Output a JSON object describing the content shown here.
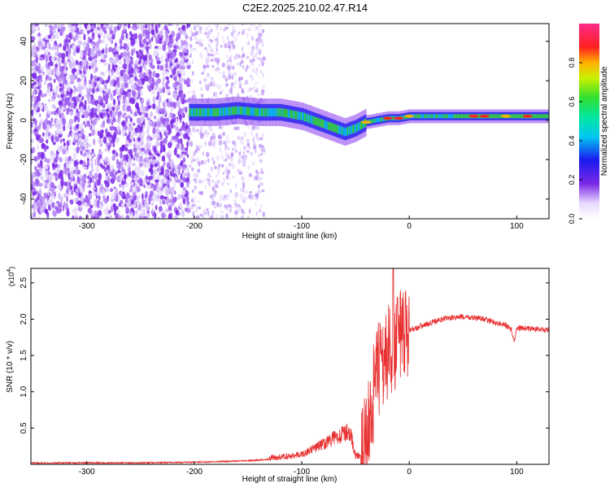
{
  "title": "C2E2.2025.210.02.47.R14",
  "chart_data": [
    {
      "type": "heatmap",
      "xlabel": "Height of straight line (km)",
      "ylabel": "Frequency (Hz)",
      "xlim": [
        -352,
        130
      ],
      "ylim": [
        -50,
        49
      ],
      "xticks": [
        -300,
        -200,
        -100,
        0,
        100
      ],
      "yticks": [
        -40,
        -20,
        0,
        20,
        40
      ],
      "grid": false,
      "colorbar": {
        "label": "Normalized spectral amplitude",
        "range": [
          0,
          1
        ],
        "ticks": [
          "0.0",
          "0.2",
          "0.4",
          "0.6",
          "0.8"
        ],
        "colormap": "rainbow (white-purple-blue-cyan-green-yellow-red-magenta)"
      },
      "ridge_frequency": {
        "x": [
          -205,
          -180,
          -160,
          -140,
          -120,
          -100,
          -80,
          -70,
          -60,
          -50,
          -40,
          -30,
          -20,
          -10,
          0,
          20,
          40,
          60,
          80,
          100,
          130
        ],
        "y": [
          4,
          4,
          5,
          4,
          4,
          2,
          -2,
          -4,
          -6,
          -4,
          -1,
          0,
          1,
          1,
          2,
          2,
          2,
          2,
          2,
          2,
          2
        ]
      },
      "regions": [
        {
          "x_range": [
            -352,
            -205
          ],
          "description_value": "broadband noise, amplitude ~0.1-0.2"
        },
        {
          "x_range": [
            -205,
            -135
          ],
          "description_value": "scattered noise, amplitude ~0.05"
        },
        {
          "x_range": [
            -205,
            130
          ],
          "description_value": "signal ridge near 0-5 Hz"
        }
      ]
    },
    {
      "type": "line",
      "xlabel": "Height of straight line (km)",
      "ylabel": "SNR (10 * v/v)",
      "y_scale_label": "(x10^4)",
      "xlim": [
        -352,
        130
      ],
      "ylim": [
        0,
        2.7
      ],
      "xticks": [
        -300,
        -200,
        -100,
        0,
        100
      ],
      "yticks": [
        "0.5",
        "1.0",
        "1.5",
        "2.0",
        "2.5"
      ],
      "grid": false,
      "series": [
        {
          "color": "#e83030",
          "x": [
            -352,
            -300,
            -250,
            -200,
            -150,
            -120,
            -100,
            -80,
            -65,
            -55,
            -50,
            -45,
            -40,
            -35,
            -30,
            -25,
            -20,
            -15,
            -10,
            -5,
            0,
            10,
            20,
            30,
            40,
            50,
            60,
            70,
            80,
            90,
            95,
            98,
            100,
            105,
            110,
            120,
            130
          ],
          "y": [
            0.02,
            0.02,
            0.02,
            0.03,
            0.05,
            0.08,
            0.12,
            0.25,
            0.35,
            0.4,
            0.1,
            0.1,
            0.4,
            0.9,
            1.3,
            1.5,
            1.6,
            1.7,
            1.75,
            1.8,
            1.85,
            1.9,
            1.95,
            2.0,
            2.02,
            2.03,
            2.02,
            2.0,
            1.95,
            1.92,
            1.85,
            1.7,
            1.87,
            1.88,
            1.87,
            1.86,
            1.85
          ]
        }
      ]
    }
  ]
}
